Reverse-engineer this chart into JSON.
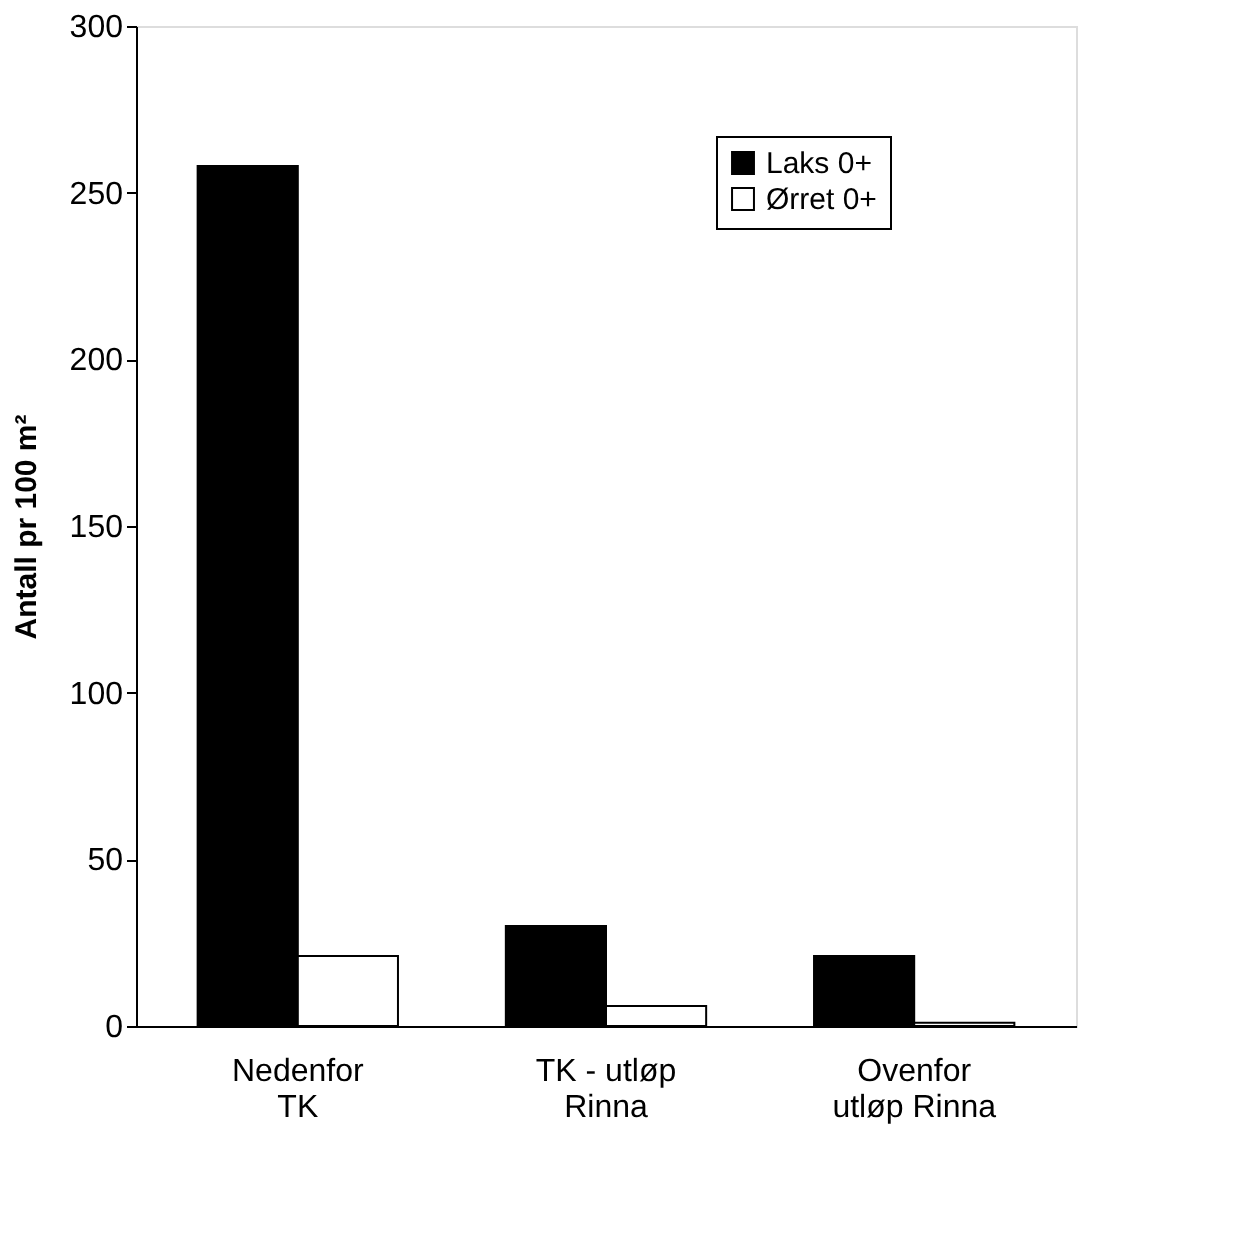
{
  "chart_data": {
    "type": "bar",
    "ylabel": "Antall pr 100 m²",
    "categories": [
      "Nedenfor\nTK",
      "TK - utløp\nRinna",
      "Ovenfor\nutløp Rinna"
    ],
    "series": [
      {
        "name": "Laks 0+",
        "color": "#000000",
        "values": [
          258,
          30,
          21
        ]
      },
      {
        "name": "Ørret 0+",
        "color": "#ffffff",
        "values": [
          21,
          6,
          1
        ]
      }
    ],
    "ylim": [
      0,
      300
    ],
    "yticks": [
      0,
      50,
      100,
      150,
      200,
      250,
      300
    ],
    "grid": false,
    "legend": "top right"
  }
}
